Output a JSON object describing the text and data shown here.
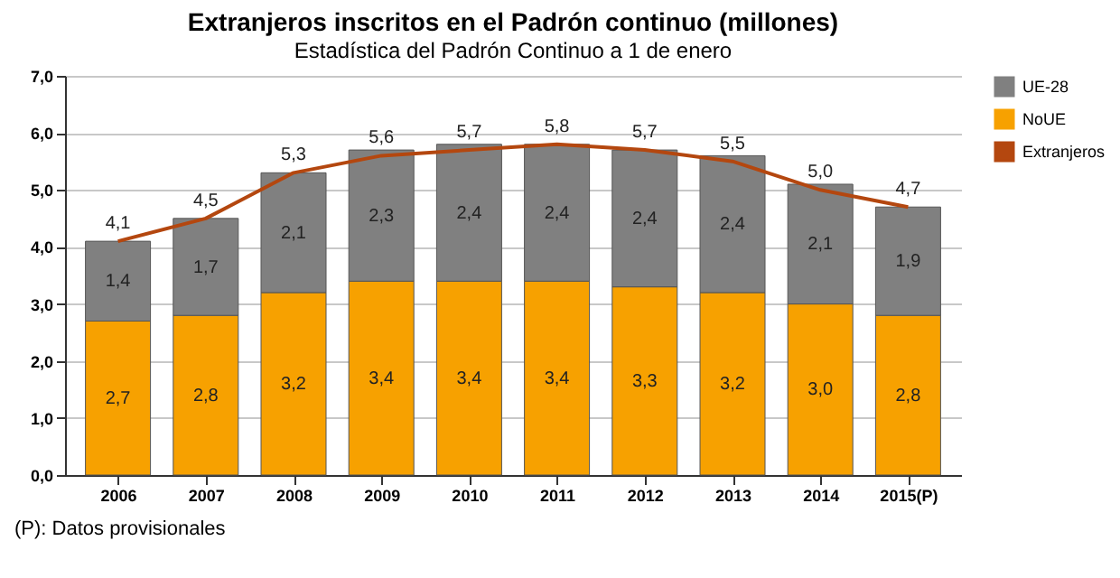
{
  "chart_data": {
    "type": "bar",
    "title": "Extranjeros inscritos en el Padrón continuo (millones)",
    "subtitle": "Estadística del Padrón Continuo a 1 de enero",
    "categories": [
      "2006",
      "2007",
      "2008",
      "2009",
      "2010",
      "2011",
      "2012",
      "2013",
      "2014",
      "2015(P)"
    ],
    "stacked": true,
    "series": [
      {
        "name": "NoUE",
        "color": "#f7a100",
        "values": [
          2.7,
          2.8,
          3.2,
          3.4,
          3.4,
          3.4,
          3.3,
          3.2,
          3.0,
          2.8
        ],
        "value_labels": [
          "2,7",
          "2,8",
          "3,2",
          "3,4",
          "3,4",
          "3,4",
          "3,3",
          "3,2",
          "3,0",
          "2,8"
        ]
      },
      {
        "name": "UE-28",
        "color": "#808080",
        "values": [
          1.4,
          1.7,
          2.1,
          2.3,
          2.4,
          2.4,
          2.4,
          2.4,
          2.1,
          1.9
        ],
        "value_labels": [
          "1,4",
          "1,7",
          "2,1",
          "2,3",
          "2,4",
          "2,4",
          "2,4",
          "2,4",
          "2,1",
          "1,9"
        ]
      },
      {
        "name": "Extranjeros",
        "type": "line",
        "color": "#b4470f",
        "values": [
          4.1,
          4.5,
          5.3,
          5.6,
          5.7,
          5.8,
          5.7,
          5.5,
          5.0,
          4.7
        ],
        "value_labels": [
          "4,1",
          "4,5",
          "5,3",
          "5,6",
          "5,7",
          "5,8",
          "5,7",
          "5,5",
          "5,0",
          "4,7"
        ]
      }
    ],
    "ylim": [
      0,
      7
    ],
    "yticks": [
      {
        "value": 0,
        "label": "0,0"
      },
      {
        "value": 1,
        "label": "1,0"
      },
      {
        "value": 2,
        "label": "2,0"
      },
      {
        "value": 3,
        "label": "3,0"
      },
      {
        "value": 4,
        "label": "4,0"
      },
      {
        "value": 5,
        "label": "5,0"
      },
      {
        "value": 6,
        "label": "6,0"
      },
      {
        "value": 7,
        "label": "7,0"
      }
    ],
    "grid": "y",
    "legend": "right",
    "marker": "none",
    "line_style": "solid",
    "annotations": [
      "(P): Datos provisionales"
    ]
  }
}
